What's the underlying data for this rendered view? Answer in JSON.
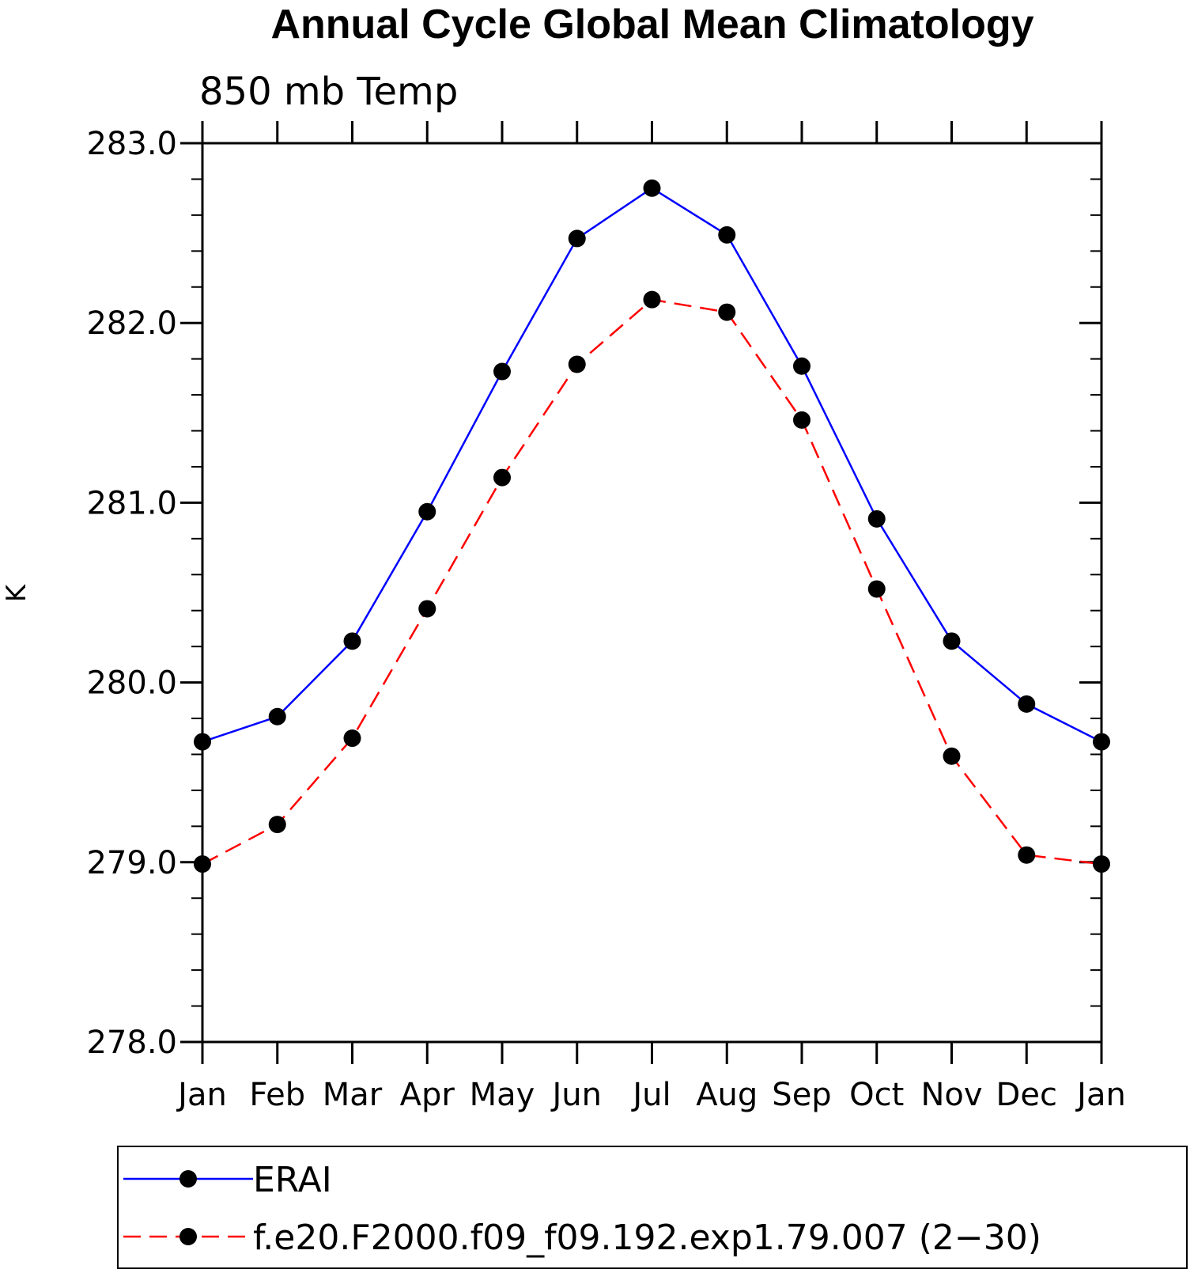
{
  "chart_data": {
    "type": "line",
    "title": "Annual Cycle Global Mean Climatology",
    "subtitle": "850 mb Temp",
    "ylabel": "K",
    "xlabel": "",
    "categories": [
      "Jan",
      "Feb",
      "Mar",
      "Apr",
      "May",
      "Jun",
      "Jul",
      "Aug",
      "Sep",
      "Oct",
      "Nov",
      "Dec",
      "Jan"
    ],
    "ylim": [
      278.0,
      283.0
    ],
    "yticks": [
      "278.0",
      "279.0",
      "280.0",
      "281.0",
      "282.0",
      "283.0"
    ],
    "grid": false,
    "legend_position": "bottom",
    "series": [
      {
        "name": "ERAI",
        "color": "#0000ff",
        "dash": "solid",
        "marker": "filled-circle",
        "values": [
          279.67,
          279.81,
          280.23,
          280.95,
          281.73,
          282.47,
          282.75,
          282.49,
          281.76,
          280.91,
          280.23,
          279.88,
          279.67
        ]
      },
      {
        "name": "f.e20.F2000.f09_f09.192.exp1.79.007 (2−30)",
        "color": "#ff0000",
        "dash": "dashed",
        "marker": "filled-circle",
        "values": [
          278.99,
          279.21,
          279.69,
          280.41,
          281.14,
          281.77,
          282.13,
          282.06,
          281.46,
          280.52,
          279.59,
          279.04,
          278.99
        ]
      }
    ]
  }
}
